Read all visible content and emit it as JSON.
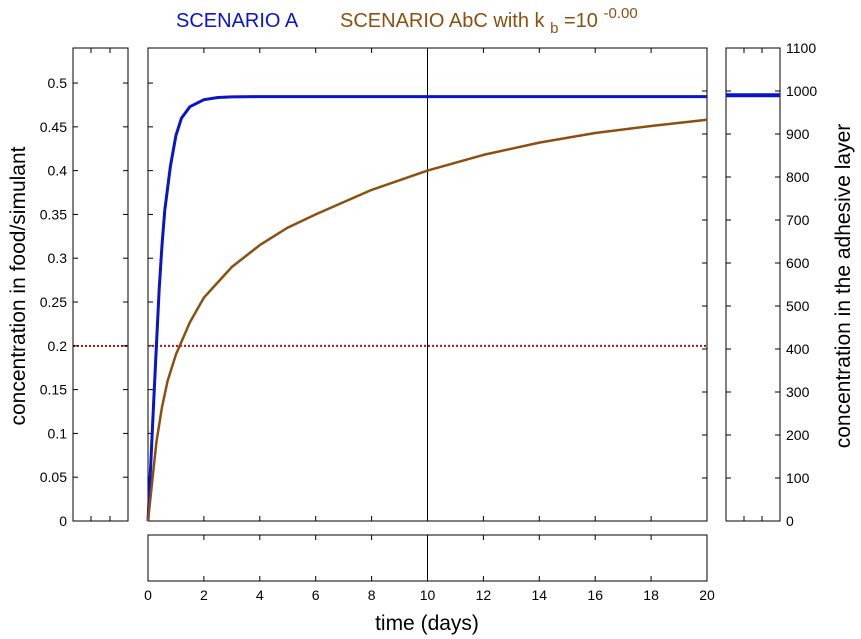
{
  "chart_data": {
    "type": "line",
    "title": {
      "scenario_a": "SCENARIO A",
      "scenario_abc_prefix": "SCENARIO AbC with k",
      "scenario_abc_sub": "b",
      "scenario_abc_eq": "=10",
      "scenario_abc_sup": "-0.00"
    },
    "xlabel": "time (days)",
    "ylabel_left": "concentration in food/simulant",
    "ylabel_right": "concentration in the adhesive layer",
    "xlim": [
      0,
      20
    ],
    "ylim_left": [
      0,
      0.54
    ],
    "ylim_right": [
      0,
      1100
    ],
    "x_ticks": [
      "0",
      "2",
      "4",
      "6",
      "8",
      "10",
      "12",
      "14",
      "16",
      "18",
      "20"
    ],
    "y_left_ticks": [
      "0",
      "0.05",
      "0.1",
      "0.15",
      "0.2",
      "0.25",
      "0.3",
      "0.35",
      "0.4",
      "0.45",
      "0.5"
    ],
    "y_right_ticks": [
      "0",
      "100",
      "200",
      "300",
      "400",
      "500",
      "600",
      "700",
      "800",
      "900",
      "1000",
      "1100"
    ],
    "series": [
      {
        "name": "SCENARIO A",
        "color": "#0a14c8",
        "x": [
          0,
          0.1,
          0.2,
          0.3,
          0.4,
          0.5,
          0.6,
          0.8,
          1.0,
          1.2,
          1.5,
          2.0,
          2.5,
          3.0,
          4.0,
          6.0,
          10.0,
          15.0,
          20.0
        ],
        "y": [
          0,
          0.066,
          0.134,
          0.2,
          0.265,
          0.315,
          0.355,
          0.405,
          0.44,
          0.46,
          0.473,
          0.481,
          0.4835,
          0.4842,
          0.4845,
          0.4845,
          0.4845,
          0.4845,
          0.4845
        ]
      },
      {
        "name": "SCENARIO AbC",
        "color": "#8b5010",
        "x": [
          0,
          0.05,
          0.1,
          0.2,
          0.3,
          0.5,
          0.7,
          1.0,
          1.5,
          2.0,
          3.0,
          4.0,
          5.0,
          6.0,
          8.0,
          10.0,
          12.0,
          14.0,
          16.0,
          18.0,
          20.0
        ],
        "y": [
          0,
          0.015,
          0.03,
          0.06,
          0.09,
          0.13,
          0.16,
          0.19,
          0.227,
          0.255,
          0.29,
          0.315,
          0.335,
          0.35,
          0.378,
          0.4,
          0.418,
          0.432,
          0.443,
          0.451,
          0.458
        ]
      }
    ],
    "reference_line": {
      "y": 0.2,
      "color": "#b01010",
      "style": "dotted"
    },
    "marker_line_x": 10,
    "adhesive_panel": {
      "level": 990,
      "color": "#0a14c8"
    }
  }
}
